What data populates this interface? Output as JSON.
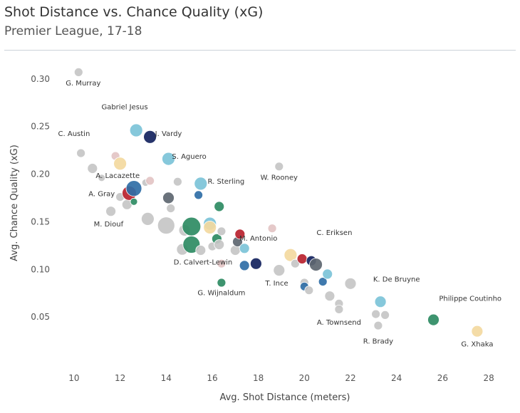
{
  "title": "Shot Distance vs. Chance Quality (xG)",
  "subtitle": "Premier League, 17-18",
  "chart_data": {
    "type": "scatter",
    "title": "Shot Distance vs. Chance Quality (xG)",
    "subtitle": "Premier League, 17-18",
    "xlabel": "Avg. Shot Distance (meters)",
    "ylabel": "Avg. Chance Quality (xG)",
    "xlim": [
      9.2,
      28.8
    ],
    "ylim": [
      0.0,
      0.32
    ],
    "xticks": [
      10,
      12,
      14,
      16,
      18,
      20,
      22,
      24,
      26,
      28
    ],
    "yticks": [
      0.05,
      0.1,
      0.15,
      0.2,
      0.25,
      0.3
    ],
    "ytick_labels": [
      "0.05",
      "0.10",
      "0.15",
      "0.20",
      "0.25",
      "0.30"
    ],
    "gridlines": false,
    "colors": {
      "grey": "#c6c6c6",
      "navy": "#14235e",
      "light_blue": "#7cc3d8",
      "blue": "#2f6ea6",
      "green": "#2e8b63",
      "red": "#b8222e",
      "cream": "#f3d9a0",
      "pink": "#e3c4c4",
      "slate": "#5d6670"
    },
    "points": [
      {
        "x": 10.2,
        "y": 0.307,
        "size": 6,
        "color": "grey"
      },
      {
        "x": 10.3,
        "y": 0.222,
        "size": 6,
        "color": "grey"
      },
      {
        "x": 10.8,
        "y": 0.206,
        "size": 7,
        "color": "grey"
      },
      {
        "x": 11.2,
        "y": 0.196,
        "size": 5,
        "color": "grey"
      },
      {
        "x": 11.6,
        "y": 0.161,
        "size": 7,
        "color": "grey"
      },
      {
        "x": 11.8,
        "y": 0.219,
        "size": 6,
        "color": "pink"
      },
      {
        "x": 12.0,
        "y": 0.211,
        "size": 9,
        "color": "cream"
      },
      {
        "x": 12.0,
        "y": 0.176,
        "size": 6,
        "color": "grey"
      },
      {
        "x": 12.3,
        "y": 0.168,
        "size": 7,
        "color": "grey"
      },
      {
        "x": 12.4,
        "y": 0.18,
        "size": 10,
        "color": "red"
      },
      {
        "x": 12.6,
        "y": 0.171,
        "size": 5,
        "color": "green"
      },
      {
        "x": 12.6,
        "y": 0.185,
        "size": 11,
        "color": "blue"
      },
      {
        "x": 12.7,
        "y": 0.246,
        "size": 9,
        "color": "light_blue"
      },
      {
        "x": 13.1,
        "y": 0.191,
        "size": 5,
        "color": "grey"
      },
      {
        "x": 13.3,
        "y": 0.239,
        "size": 9,
        "color": "navy"
      },
      {
        "x": 13.3,
        "y": 0.193,
        "size": 6,
        "color": "pink"
      },
      {
        "x": 13.2,
        "y": 0.153,
        "size": 9,
        "color": "grey"
      },
      {
        "x": 14.0,
        "y": 0.146,
        "size": 12,
        "color": "grey"
      },
      {
        "x": 14.1,
        "y": 0.175,
        "size": 8,
        "color": "slate"
      },
      {
        "x": 14.1,
        "y": 0.216,
        "size": 9,
        "color": "light_blue"
      },
      {
        "x": 14.2,
        "y": 0.164,
        "size": 6,
        "color": "grey"
      },
      {
        "x": 14.5,
        "y": 0.192,
        "size": 6,
        "color": "grey"
      },
      {
        "x": 14.7,
        "y": 0.121,
        "size": 8,
        "color": "grey"
      },
      {
        "x": 14.8,
        "y": 0.141,
        "size": 8,
        "color": "grey"
      },
      {
        "x": 15.1,
        "y": 0.145,
        "size": 13,
        "color": "green"
      },
      {
        "x": 15.1,
        "y": 0.126,
        "size": 12,
        "color": "green"
      },
      {
        "x": 15.4,
        "y": 0.178,
        "size": 6,
        "color": "blue"
      },
      {
        "x": 15.5,
        "y": 0.19,
        "size": 9,
        "color": "light_blue"
      },
      {
        "x": 15.5,
        "y": 0.12,
        "size": 7,
        "color": "grey"
      },
      {
        "x": 15.9,
        "y": 0.148,
        "size": 9,
        "color": "light_blue"
      },
      {
        "x": 15.9,
        "y": 0.144,
        "size": 9,
        "color": "cream"
      },
      {
        "x": 16.0,
        "y": 0.124,
        "size": 6,
        "color": "grey"
      },
      {
        "x": 16.2,
        "y": 0.132,
        "size": 7,
        "color": "green"
      },
      {
        "x": 16.3,
        "y": 0.126,
        "size": 7,
        "color": "grey"
      },
      {
        "x": 16.3,
        "y": 0.166,
        "size": 7,
        "color": "green"
      },
      {
        "x": 16.4,
        "y": 0.106,
        "size": 6,
        "color": "pink"
      },
      {
        "x": 16.4,
        "y": 0.14,
        "size": 6,
        "color": "grey"
      },
      {
        "x": 16.4,
        "y": 0.086,
        "size": 6,
        "color": "green"
      },
      {
        "x": 17.0,
        "y": 0.12,
        "size": 7,
        "color": "grey"
      },
      {
        "x": 17.1,
        "y": 0.129,
        "size": 7,
        "color": "slate"
      },
      {
        "x": 17.2,
        "y": 0.137,
        "size": 7,
        "color": "red"
      },
      {
        "x": 17.4,
        "y": 0.122,
        "size": 7,
        "color": "light_blue"
      },
      {
        "x": 17.4,
        "y": 0.104,
        "size": 7,
        "color": "blue"
      },
      {
        "x": 17.9,
        "y": 0.106,
        "size": 8,
        "color": "navy"
      },
      {
        "x": 18.6,
        "y": 0.143,
        "size": 6,
        "color": "pink"
      },
      {
        "x": 18.9,
        "y": 0.208,
        "size": 6,
        "color": "grey"
      },
      {
        "x": 18.9,
        "y": 0.099,
        "size": 8,
        "color": "grey"
      },
      {
        "x": 19.4,
        "y": 0.115,
        "size": 9,
        "color": "cream"
      },
      {
        "x": 19.6,
        "y": 0.106,
        "size": 6,
        "color": "grey"
      },
      {
        "x": 19.9,
        "y": 0.111,
        "size": 7,
        "color": "red"
      },
      {
        "x": 20.0,
        "y": 0.086,
        "size": 6,
        "color": "grey"
      },
      {
        "x": 20.0,
        "y": 0.082,
        "size": 6,
        "color": "blue"
      },
      {
        "x": 20.2,
        "y": 0.078,
        "size": 6,
        "color": "grey"
      },
      {
        "x": 20.3,
        "y": 0.109,
        "size": 7,
        "color": "navy"
      },
      {
        "x": 20.5,
        "y": 0.105,
        "size": 9,
        "color": "slate"
      },
      {
        "x": 20.8,
        "y": 0.087,
        "size": 6,
        "color": "blue"
      },
      {
        "x": 21.0,
        "y": 0.095,
        "size": 7,
        "color": "light_blue"
      },
      {
        "x": 21.1,
        "y": 0.072,
        "size": 7,
        "color": "grey"
      },
      {
        "x": 21.5,
        "y": 0.064,
        "size": 6,
        "color": "grey"
      },
      {
        "x": 21.5,
        "y": 0.058,
        "size": 6,
        "color": "grey"
      },
      {
        "x": 22.0,
        "y": 0.085,
        "size": 8,
        "color": "grey"
      },
      {
        "x": 23.1,
        "y": 0.053,
        "size": 6,
        "color": "grey"
      },
      {
        "x": 23.2,
        "y": 0.041,
        "size": 6,
        "color": "grey"
      },
      {
        "x": 23.3,
        "y": 0.066,
        "size": 8,
        "color": "light_blue"
      },
      {
        "x": 23.5,
        "y": 0.052,
        "size": 6,
        "color": "grey"
      },
      {
        "x": 25.6,
        "y": 0.047,
        "size": 8,
        "color": "green"
      },
      {
        "x": 27.5,
        "y": 0.035,
        "size": 8,
        "color": "cream"
      }
    ],
    "annotations": [
      {
        "text": "G. Murray",
        "x": 10.4,
        "y": 0.293
      },
      {
        "text": "Gabriel Jesus",
        "x": 12.2,
        "y": 0.268
      },
      {
        "text": "C. Austin",
        "x": 10.0,
        "y": 0.24
      },
      {
        "text": "J. Vardy",
        "x": 14.1,
        "y": 0.24
      },
      {
        "text": "S. Aguero",
        "x": 15.0,
        "y": 0.216
      },
      {
        "text": "A. Lacazette",
        "x": 11.9,
        "y": 0.196
      },
      {
        "text": "R. Sterling",
        "x": 16.6,
        "y": 0.19
      },
      {
        "text": "W. Rooney",
        "x": 18.9,
        "y": 0.194
      },
      {
        "text": "A. Gray",
        "x": 11.2,
        "y": 0.177
      },
      {
        "text": "M. Diouf",
        "x": 11.5,
        "y": 0.145
      },
      {
        "text": "C. Eriksen",
        "x": 21.3,
        "y": 0.136
      },
      {
        "text": "M. Antonio",
        "x": 18.0,
        "y": 0.13
      },
      {
        "text": "D. Calvert-Lewin",
        "x": 15.6,
        "y": 0.105
      },
      {
        "text": "T. Ince",
        "x": 18.8,
        "y": 0.083
      },
      {
        "text": "K. De Bruyne",
        "x": 24.0,
        "y": 0.087
      },
      {
        "text": "G. Wijnaldum",
        "x": 16.4,
        "y": 0.073
      },
      {
        "text": "Philippe Coutinho",
        "x": 27.2,
        "y": 0.067
      },
      {
        "text": "A. Townsend",
        "x": 21.5,
        "y": 0.042
      },
      {
        "text": "R. Brady",
        "x": 23.2,
        "y": 0.022
      },
      {
        "text": "G. Xhaka",
        "x": 27.5,
        "y": 0.019
      }
    ]
  }
}
